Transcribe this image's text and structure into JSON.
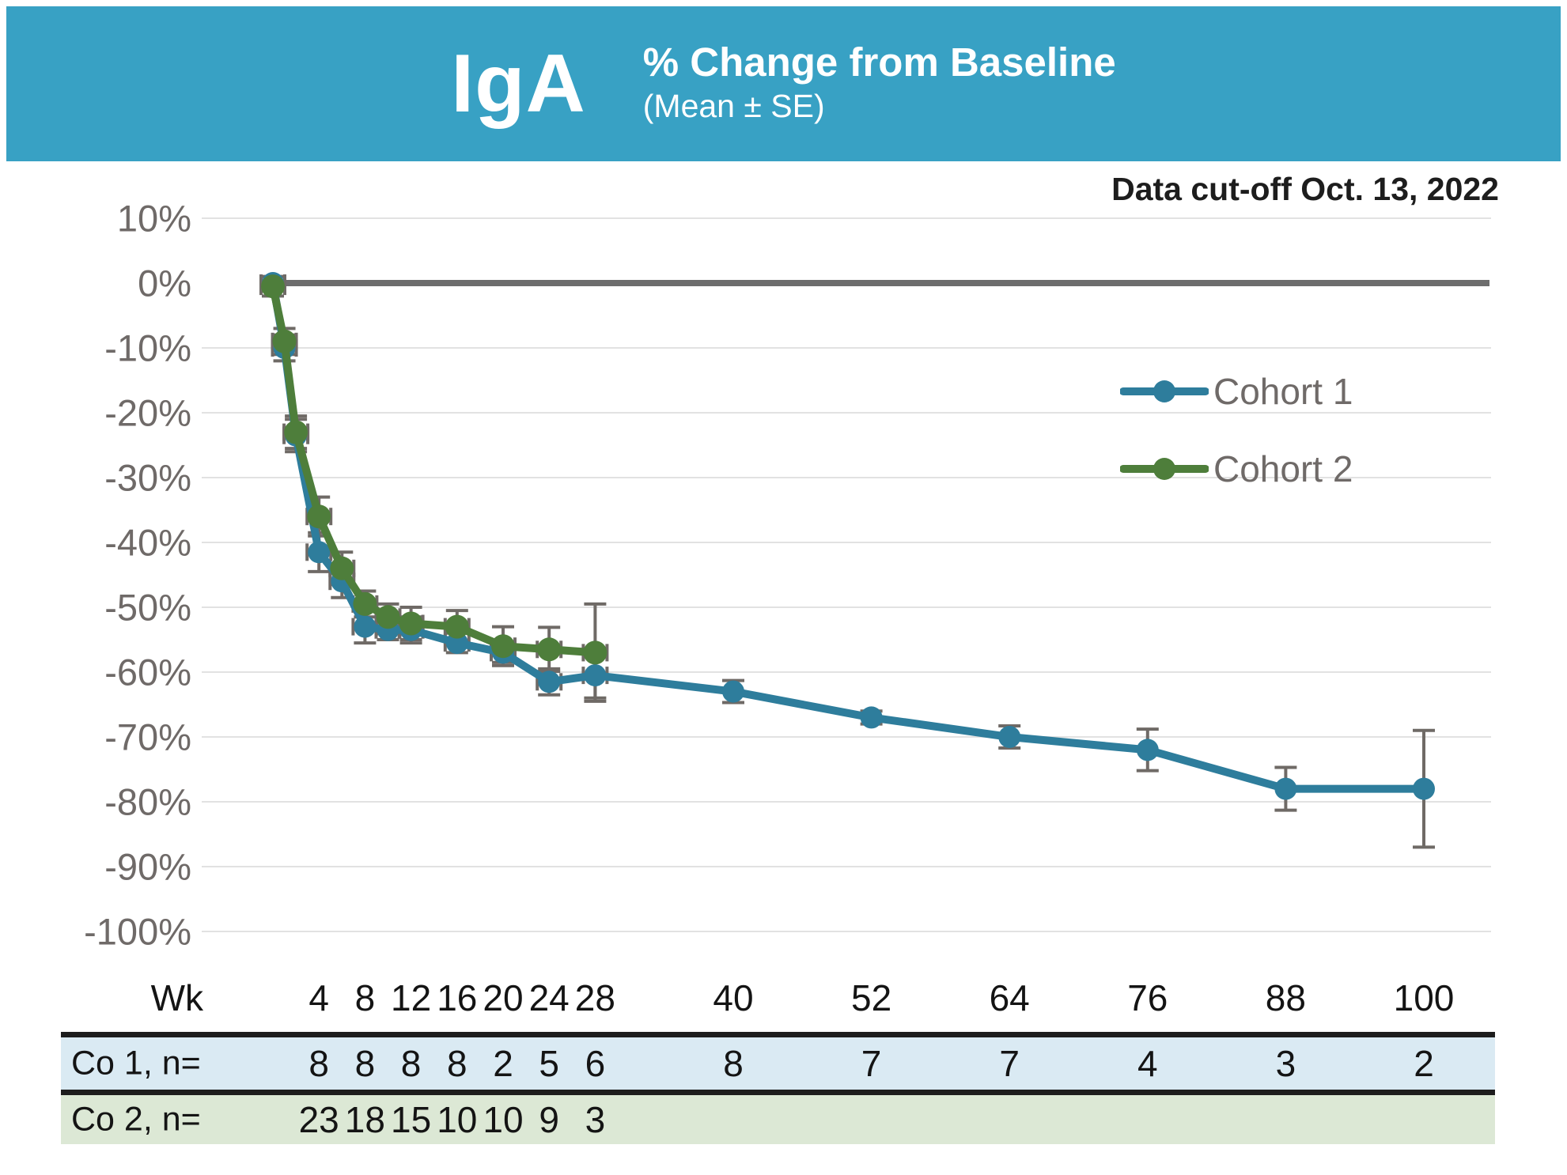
{
  "header": {
    "label": "IgA",
    "title": "% Change from Baseline",
    "subtitle": "(Mean ± SE)",
    "bg_color": "#38a1c4"
  },
  "annotation": {
    "data_cutoff": "Data cut-off Oct. 13, 2022"
  },
  "legend": {
    "items": [
      {
        "label": "Cohort 1",
        "color": "#2e7d9c"
      },
      {
        "label": "Cohort 2",
        "color": "#4e7e3b"
      }
    ]
  },
  "chart_data": {
    "type": "line",
    "title": "IgA % Change from Baseline (Mean ± SE)",
    "xlabel": "Wk",
    "ylabel": "% Change from Baseline",
    "xlim": [
      -6,
      106
    ],
    "ylim": [
      -100,
      10
    ],
    "grid": true,
    "legend_position": "right-inside",
    "xticks": [
      4,
      8,
      12,
      16,
      20,
      24,
      28,
      40,
      52,
      64,
      76,
      88,
      100
    ],
    "yticks": [
      10,
      0,
      -10,
      -20,
      -30,
      -40,
      -50,
      -60,
      -70,
      -80,
      -90,
      -100
    ],
    "ytick_labels": [
      "10%",
      "0%",
      "-10%",
      "-20%",
      "-30%",
      "-40%",
      "-50%",
      "-60%",
      "-70%",
      "-80%",
      "-90%",
      "-100%"
    ],
    "zero_line": {
      "color": "#6d6d6d",
      "width": 8
    },
    "gridline_color": "#e2e2e2",
    "errorbar_color": "#6f6a66",
    "series": [
      {
        "name": "Cohort 1",
        "color": "#2e7d9c",
        "points": [
          {
            "wk": 0,
            "y": 0,
            "se": 1,
            "xe": 1
          },
          {
            "wk": 1,
            "y": -10,
            "se": 2,
            "xe": 1
          },
          {
            "wk": 2,
            "y": -23.5,
            "se": 2.5,
            "xe": 1
          },
          {
            "wk": 4,
            "y": -41.5,
            "se": 3,
            "xe": 1
          },
          {
            "wk": 6,
            "y": -46,
            "se": 2.5,
            "xe": 1
          },
          {
            "wk": 8,
            "y": -53,
            "se": 2.5,
            "xe": 1
          },
          {
            "wk": 10,
            "y": -53.5,
            "se": 1.5,
            "xe": 1
          },
          {
            "wk": 12,
            "y": -53.5,
            "se": 2,
            "xe": 1
          },
          {
            "wk": 16,
            "y": -55.5,
            "se": 1.5,
            "xe": 1
          },
          {
            "wk": 20,
            "y": -57,
            "se": 1.5,
            "xe": 1
          },
          {
            "wk": 24,
            "y": -61.5,
            "se": 2,
            "xe": 1
          },
          {
            "wk": 28,
            "y": -60.5,
            "se": 3.5,
            "xe": 1
          },
          {
            "wk": 40,
            "y": -63,
            "se": 1.7,
            "xe": 0
          },
          {
            "wk": 52,
            "y": -67,
            "se": 1,
            "xe": 0
          },
          {
            "wk": 64,
            "y": -70,
            "se": 1.7,
            "xe": 0
          },
          {
            "wk": 76,
            "y": -72,
            "se": 3.2,
            "xe": 0
          },
          {
            "wk": 88,
            "y": -78,
            "se": 3.3,
            "xe": 0
          },
          {
            "wk": 100,
            "y": -78,
            "se": 9,
            "xe": 0
          }
        ]
      },
      {
        "name": "Cohort 2",
        "color": "#4e7e3b",
        "points": [
          {
            "wk": 0,
            "y": -0.5,
            "se": 1.5,
            "xe": 1
          },
          {
            "wk": 1,
            "y": -9,
            "se": 2,
            "xe": 1
          },
          {
            "wk": 2,
            "y": -23,
            "se": 2.5,
            "xe": 1
          },
          {
            "wk": 4,
            "y": -36,
            "se": 3,
            "xe": 1
          },
          {
            "wk": 6,
            "y": -44,
            "se": 2.5,
            "xe": 1
          },
          {
            "wk": 8,
            "y": -49.5,
            "se": 2,
            "xe": 1
          },
          {
            "wk": 10,
            "y": -51.5,
            "se": 2,
            "xe": 1
          },
          {
            "wk": 12,
            "y": -52.5,
            "se": 2.5,
            "xe": 1
          },
          {
            "wk": 16,
            "y": -53,
            "se": 2.5,
            "xe": 1
          },
          {
            "wk": 20,
            "y": -56,
            "se": 3,
            "xe": 1
          },
          {
            "wk": 24,
            "y": -56.5,
            "se": 3.4,
            "xe": 1
          },
          {
            "wk": 28,
            "y": -57,
            "se": 7.5,
            "xe": 1
          }
        ]
      }
    ]
  },
  "table": {
    "week_header_label": "Wk",
    "weeks": [
      4,
      8,
      12,
      16,
      20,
      24,
      28,
      40,
      52,
      64,
      76,
      88,
      100
    ],
    "rows": [
      {
        "label": "Co 1, n=",
        "bg": "#daeaf3",
        "values": {
          "4": "8",
          "8": "8",
          "12": "8",
          "16": "8",
          "20": "2",
          "24": "5",
          "28": "6",
          "40": "8",
          "52": "7",
          "64": "7",
          "76": "4",
          "88": "3",
          "100": "2"
        }
      },
      {
        "label": "Co 2, n=",
        "bg": "#dce8d5",
        "values": {
          "4": "23",
          "8": "18",
          "12": "15",
          "16": "10",
          "20": "10",
          "24": "9",
          "28": "3"
        }
      }
    ]
  }
}
